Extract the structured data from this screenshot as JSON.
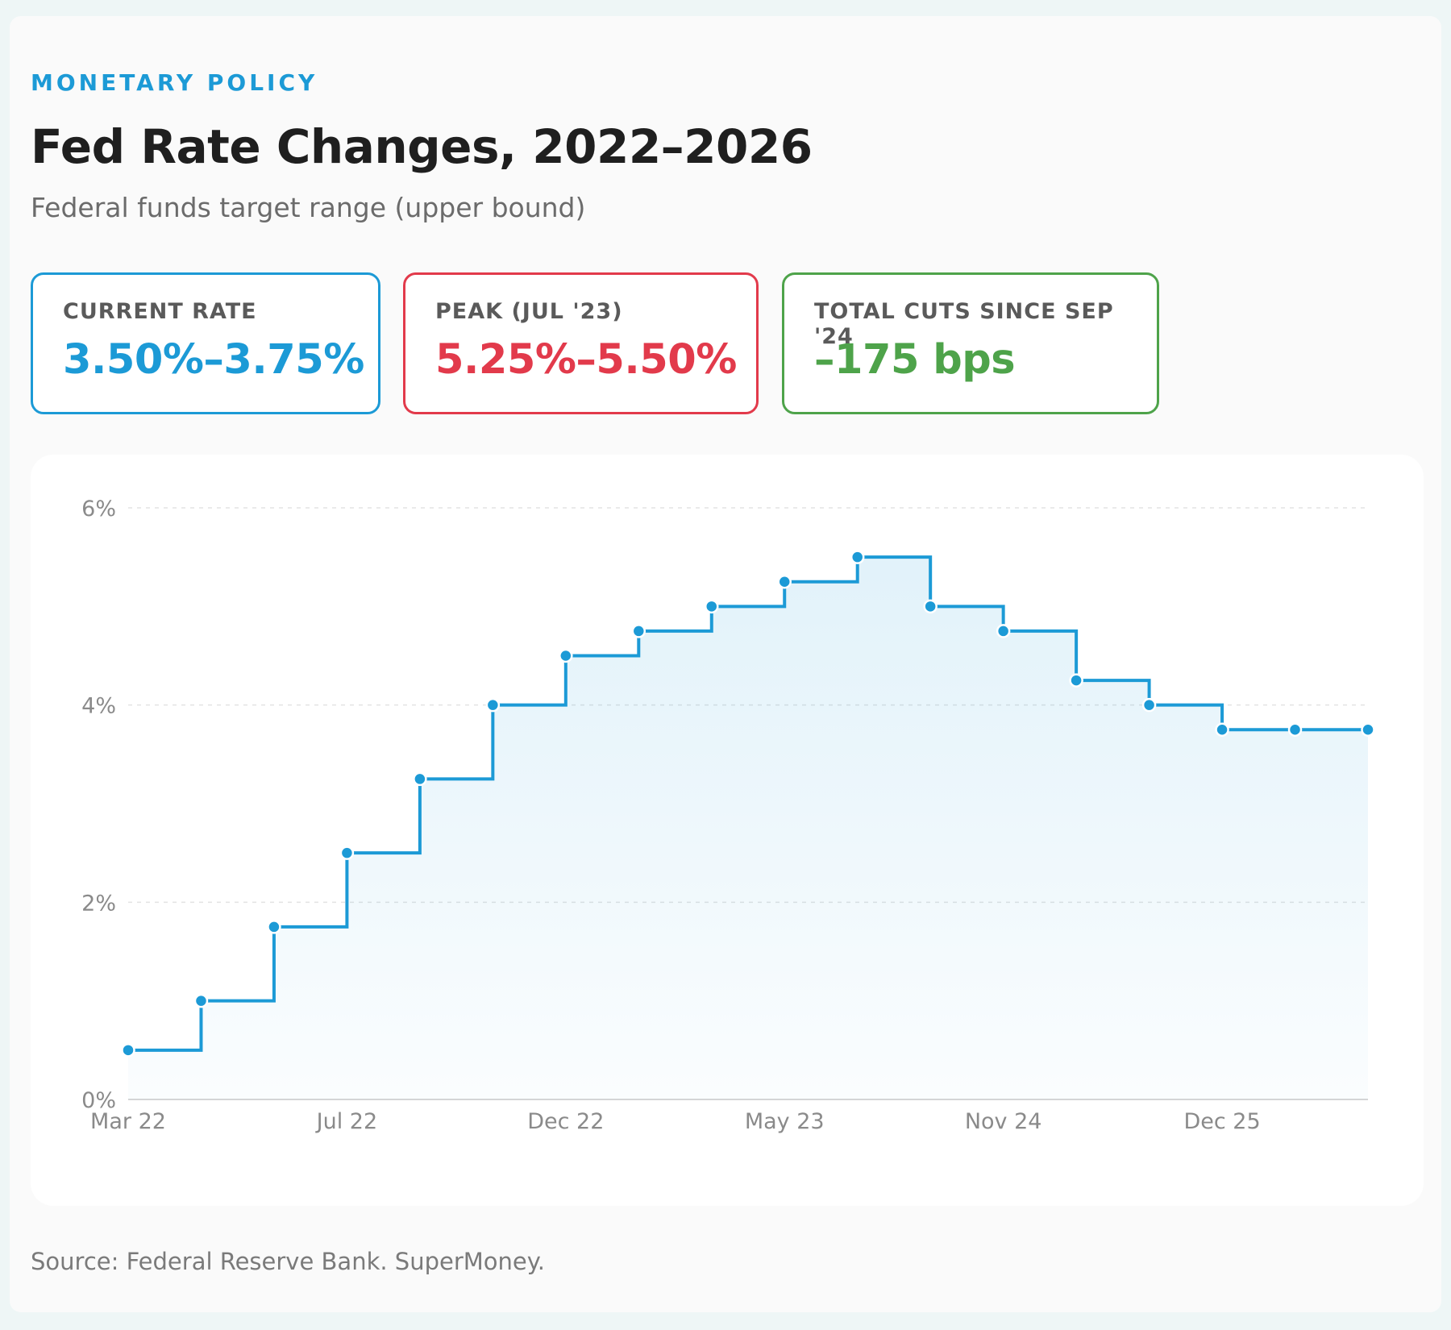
{
  "header": {
    "eyebrow": "MONETARY POLICY",
    "title": "Fed Rate Changes, 2022–2026",
    "subtitle": "Federal funds target range (upper bound)"
  },
  "stats": {
    "current": {
      "label": "CURRENT RATE",
      "value": "3.50%–3.75%",
      "color": "#1c9ad6"
    },
    "peak": {
      "label": "PEAK (JUL '23)",
      "value": "5.25%–5.50%",
      "color": "#e23a4b"
    },
    "cuts": {
      "label": "TOTAL CUTS SINCE SEP '24",
      "value": "–175 bps",
      "color": "#4ea34a"
    }
  },
  "colors": {
    "line": "#1c9ad6",
    "grid": "#e3e3e3",
    "tick_text": "#8a8a8a"
  },
  "chart_data": {
    "type": "line",
    "step": "after",
    "title": "Fed Rate Changes, 2022–2026",
    "xlabel": "",
    "ylabel": "",
    "ylim": [
      0,
      6
    ],
    "y_ticks": [
      "0%",
      "2%",
      "4%",
      "6%"
    ],
    "y_tick_values": [
      0,
      2,
      4,
      6
    ],
    "grid": true,
    "x_tick_labels": [
      "Mar 22",
      "Jul 22",
      "Dec 22",
      "May 23",
      "Nov 24",
      "Dec 25"
    ],
    "x_tick_indices": [
      0,
      3,
      6,
      9,
      12,
      15
    ],
    "series": [
      {
        "values": [
          0.5,
          1.0,
          1.75,
          2.5,
          3.25,
          4.0,
          4.5,
          4.75,
          5.0,
          5.25,
          5.5,
          5.0,
          4.75,
          4.25,
          4.0,
          3.75,
          3.75,
          3.75
        ]
      }
    ]
  },
  "footer": {
    "source": "Source: Federal Reserve Bank. SuperMoney."
  }
}
